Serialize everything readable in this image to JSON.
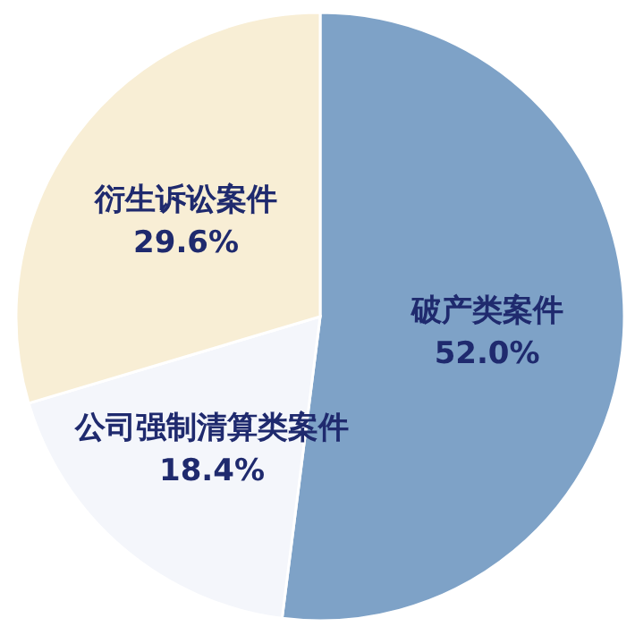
{
  "chart_data": {
    "type": "pie",
    "categories": [
      "破产类案件",
      "公司强制清算类案件",
      "衍生诉讼案件"
    ],
    "values": [
      52.0,
      18.4,
      29.6
    ],
    "value_labels": [
      "52.0%",
      "18.4%",
      "29.6%"
    ],
    "colors": [
      "#7ea2c7",
      "#f4f6fb",
      "#f8eed5"
    ]
  }
}
